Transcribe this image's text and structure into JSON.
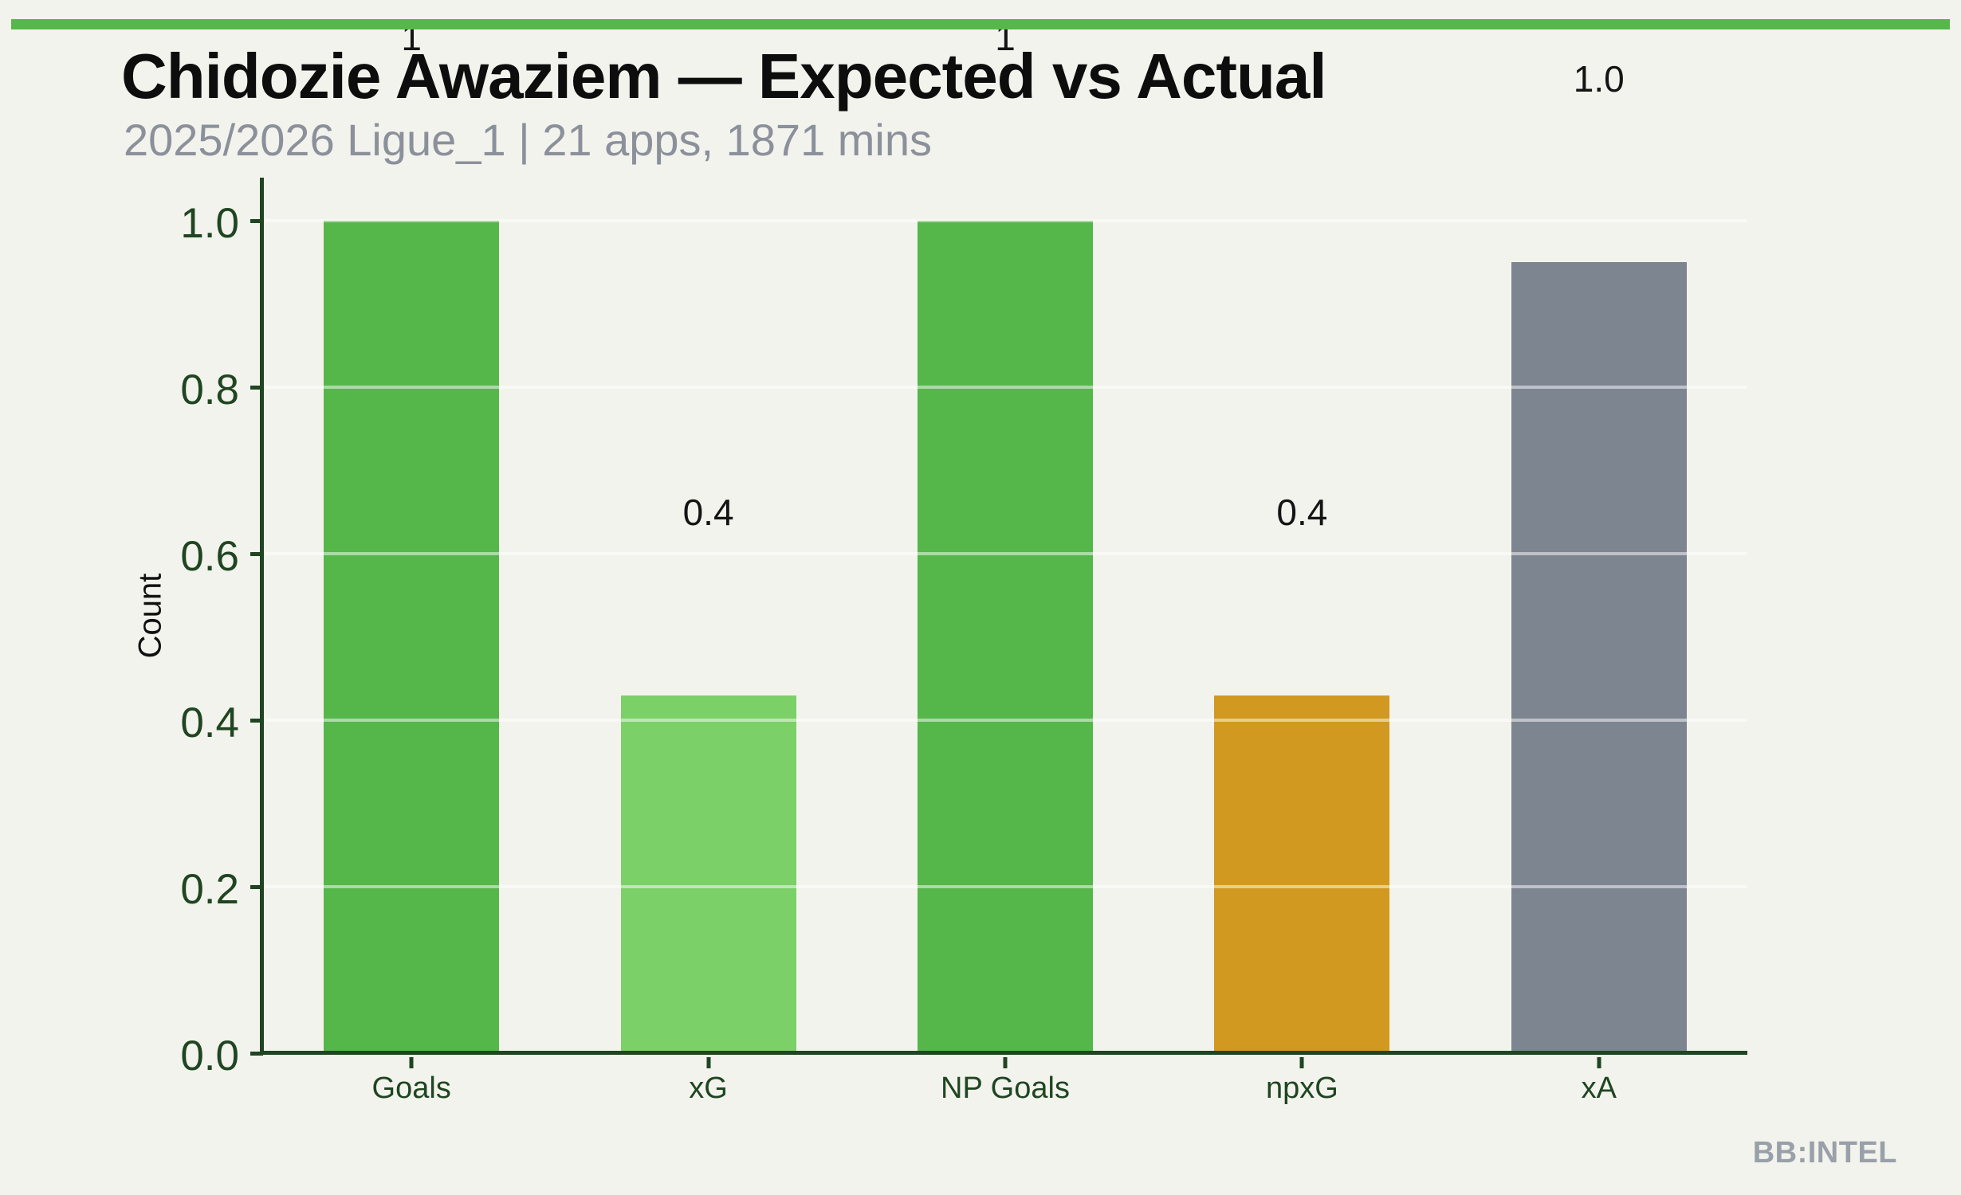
{
  "colors": {
    "background": "#f2f3ec",
    "accent_strip": "#56b84b",
    "axis": "#1f4521",
    "title": "#0d0d0d",
    "subtitle": "#8b909b",
    "value_label": "#141414",
    "watermark": "#9aa0a9",
    "gridline": "rgba(255,255,255,0.5)"
  },
  "header": {
    "title": "Chidozie Awaziem — Expected vs Actual",
    "subtitle": "2025/2026 Ligue_1 | 21 apps, 1871 mins"
  },
  "footer": {
    "watermark": "BB:INTEL"
  },
  "chart_data": {
    "type": "bar",
    "title": "Chidozie Awaziem — Expected vs Actual",
    "subtitle": "2025/2026 Ligue_1 | 21 apps, 1871 mins",
    "xlabel": "",
    "ylabel": "Count",
    "ylim": [
      0.0,
      1.0
    ],
    "yticks": [
      0.0,
      0.2,
      0.4,
      0.6,
      0.8,
      1.0
    ],
    "grid": true,
    "legend_position": "none",
    "categories": [
      "Goals",
      "xG",
      "NP Goals",
      "npxG",
      "xA"
    ],
    "values": [
      1.0,
      0.43,
      1.0,
      0.43,
      0.95
    ],
    "value_labels": [
      "1",
      "0.4",
      "1",
      "0.4",
      "1.0"
    ],
    "bar_colors": [
      "#55b74a",
      "#7bd067",
      "#55b74a",
      "#d29921",
      "#7d8591"
    ]
  }
}
